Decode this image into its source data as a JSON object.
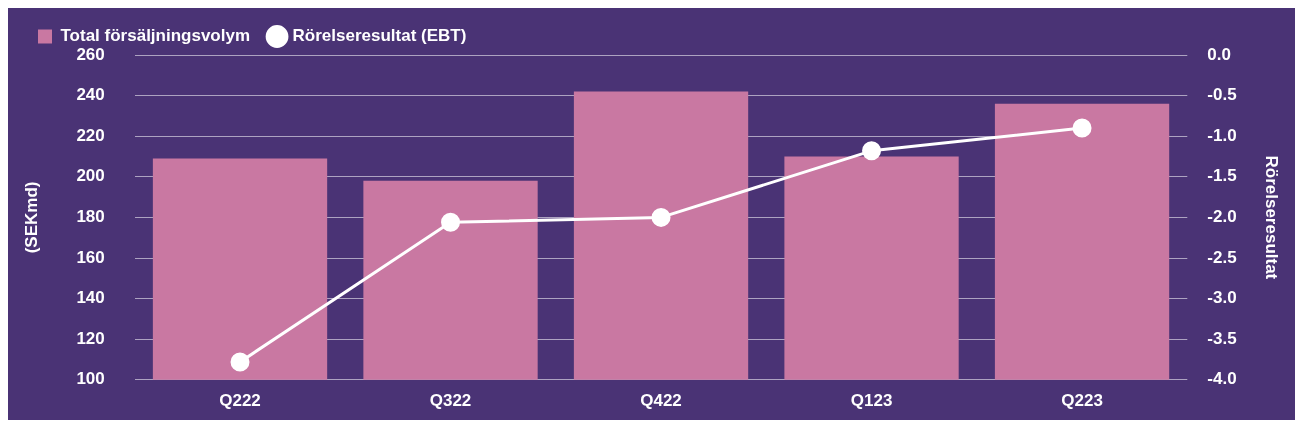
{
  "chart_data": {
    "type": "bar",
    "categories": [
      "Q222",
      "Q322",
      "Q422",
      "Q123",
      "Q223"
    ],
    "series": [
      {
        "name": "Total försäljningsvolym",
        "color": "#c978a2",
        "values": [
          209,
          198,
          242,
          210,
          236
        ]
      },
      {
        "name": "Rörelseresultat (EBT)",
        "type": "line",
        "axis": "y2",
        "color": "#ffffff",
        "marker": "circle",
        "values": [
          -3.78,
          -2.06,
          -2.0,
          -1.18,
          -0.9
        ]
      }
    ],
    "ylabel": "(SEKmd)",
    "y2label": "Rörelseresultat",
    "ylim": [
      100,
      260
    ],
    "yticks": [
      100,
      120,
      140,
      160,
      180,
      200,
      220,
      240,
      260
    ],
    "y2lim": [
      -4.0,
      0.0
    ],
    "y2ticks": [
      {
        "value": -4,
        "label": "-4.0"
      },
      {
        "value": -3.5,
        "label": "-3.5"
      },
      {
        "value": -3,
        "label": "-3.0"
      },
      {
        "value": -2.5,
        "label": "-2.5"
      },
      {
        "value": -2,
        "label": "-2.0"
      },
      {
        "value": -1.5,
        "label": "-1.5"
      },
      {
        "value": -1,
        "label": "-1.0"
      },
      {
        "value": -0.5,
        "label": "-0.5"
      },
      {
        "value": 0,
        "label": "0.0"
      }
    ],
    "grid": "y",
    "legend": "top left"
  }
}
